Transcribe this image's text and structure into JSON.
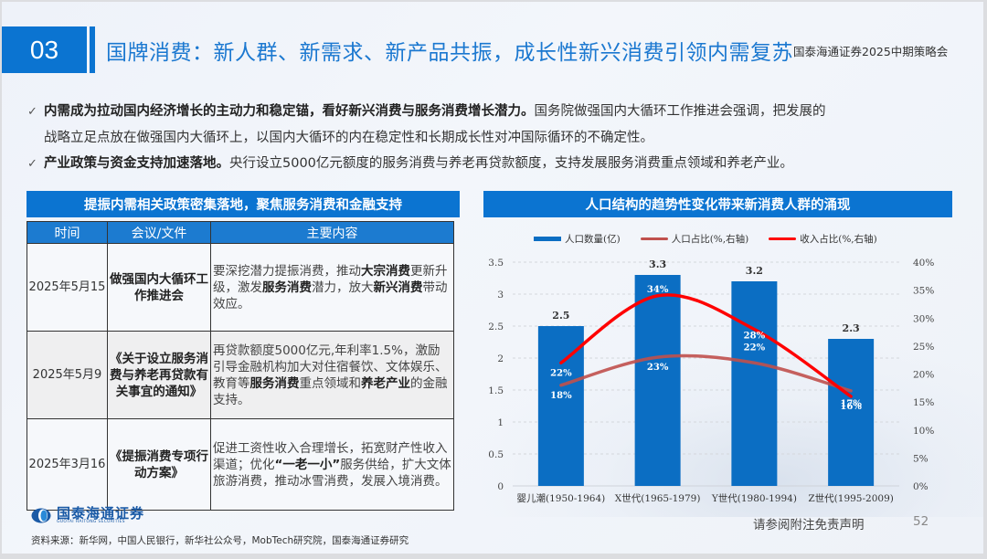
{
  "header": {
    "section_number": "03",
    "title": "国牌消费：新人群、新需求、新产品共振，成长性新兴消费引领内需复苏",
    "conference": "国泰海通证券2025中期策略会"
  },
  "bullets": [
    {
      "bold": "内需成为拉动国内经济增长的主动力和稳定锚，看好新兴消费与服务消费增长潜力。",
      "text": "国务院做强国内大循环工作推进会强调，把发展的",
      "continuation": "战略立足点放在做强国内大循环上，以国内大循环的内在稳定性和长期成长性对冲国际循环的不确定性。"
    },
    {
      "bold": "产业政策与资金支持加速落地。",
      "text": "央行设立5000亿元额度的服务消费与养老再贷款额度，支持发展服务消费重点领域和养老产业。"
    }
  ],
  "left_panel": {
    "title": "提振内需相关政策密集落地，聚焦服务消费和金融支持",
    "columns": [
      "时间",
      "会议/文件",
      "主要内容"
    ],
    "rows": [
      {
        "date": "2025年5月15",
        "doc": "做强国内大循环工作推进会",
        "content_parts": [
          {
            "t": "要深挖潜力提振消费，推动",
            "b": false
          },
          {
            "t": "大宗消费",
            "b": true
          },
          {
            "t": "更新升级，激发",
            "b": false
          },
          {
            "t": "服务消费",
            "b": true
          },
          {
            "t": "潜力，放大",
            "b": false
          },
          {
            "t": "新兴消费",
            "b": true
          },
          {
            "t": "带动效应。",
            "b": false
          }
        ]
      },
      {
        "date": "2025年5月9",
        "doc": "《关于设立服务消费与养老再贷款有关事宜的通知》",
        "content_parts": [
          {
            "t": "再贷款额度5000亿元,年利率1.5%，激励引导金融机构加大对住宿餐饮、文体娱乐、教育等",
            "b": false
          },
          {
            "t": "服务消费",
            "b": true
          },
          {
            "t": "重点领域和",
            "b": false
          },
          {
            "t": "养老产业",
            "b": true
          },
          {
            "t": "的金融支持。",
            "b": false
          }
        ]
      },
      {
        "date": "2025年3月16",
        "doc": "《提振消费专项行动方案》",
        "content_parts": [
          {
            "t": "促进工资性收入合理增长，拓宽财产性收入渠道；优化",
            "b": false
          },
          {
            "t": "“一老一小”",
            "b": true
          },
          {
            "t": "服务供给，扩大文体旅游消费，推动冰雪消费，发展入境消费。",
            "b": false
          }
        ]
      }
    ]
  },
  "right_panel": {
    "title": "人口结构的趋势性变化带来新消费人群的涌现"
  },
  "chart_data": {
    "type": "bar",
    "title": "人口结构的趋势性变化带来新消费人群的涌现",
    "categories": [
      "婴儿潮(1950-1964)",
      "X世代(1965-1979)",
      "Y世代(1980-1994)",
      "Z世代(1995-2009)"
    ],
    "series": [
      {
        "name": "人口数量(亿)",
        "type": "bar",
        "axis": "left",
        "color": "#0b6ec3",
        "values": [
          2.5,
          3.3,
          3.2,
          2.3
        ],
        "labels": [
          "2.5",
          "3.3",
          "3.2",
          "2.3"
        ]
      },
      {
        "name": "人口占比(%,右轴)",
        "type": "line",
        "axis": "right",
        "color": "#c0504d",
        "values": [
          18,
          23,
          22,
          17
        ],
        "labels": [
          "18%",
          "23%",
          "22%",
          "17%"
        ]
      },
      {
        "name": "收入占比(%,右轴)",
        "type": "line",
        "axis": "right",
        "color": "#ff0000",
        "values": [
          22,
          34,
          28,
          16
        ],
        "labels": [
          "22%",
          "34%",
          "28%",
          "16%"
        ]
      }
    ],
    "left_axis": {
      "min": 0,
      "max": 3.5,
      "ticks": [
        "0",
        "0.5",
        "1",
        "1.5",
        "2",
        "2.5",
        "3",
        "3.5"
      ]
    },
    "right_axis": {
      "min": 0,
      "max": 40,
      "ticks": [
        "0%",
        "5%",
        "10%",
        "15%",
        "20%",
        "25%",
        "30%",
        "35%",
        "40%"
      ]
    },
    "grid": "dashed horizontal",
    "legend_position": "top",
    "xlabel": "",
    "ylabel": ""
  },
  "footer": {
    "logo_name": "国泰海通证券",
    "logo_sub": "GUOTAI HAITONG SECURITIES",
    "source": "资料来源：新华网，中国人民银行，新华社公众号，MobTech研究院，国泰海通证券研究",
    "disclaimer": "请参阅附注免责声明",
    "page_number": "52"
  }
}
